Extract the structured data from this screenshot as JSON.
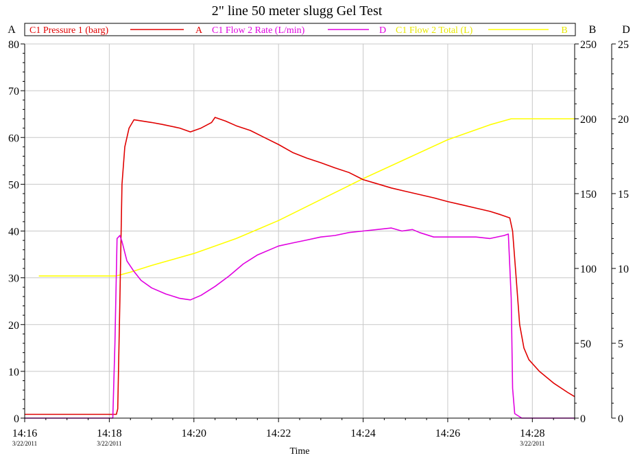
{
  "chart_data": {
    "type": "line",
    "title": "2\" line 50 meter slugg Gel Test",
    "xlabel": "Time",
    "x_range": [
      "14:16",
      "14:29"
    ],
    "x_ticks": [
      {
        "label": "14:16",
        "date": "3/22/2011"
      },
      {
        "label": "14:18",
        "date": "3/22/2011"
      },
      {
        "label": "14:20",
        "date": ""
      },
      {
        "label": "14:22",
        "date": ""
      },
      {
        "label": "14:24",
        "date": ""
      },
      {
        "label": "14:26",
        "date": ""
      },
      {
        "label": "14:28",
        "date": "3/22/2011"
      }
    ],
    "grid": true,
    "axes": [
      {
        "id": "A",
        "label": "A",
        "side": "left",
        "range": [
          0,
          80
        ],
        "ticks": [
          "0",
          "10",
          "20",
          "30",
          "40",
          "50",
          "60",
          "70",
          "80"
        ]
      },
      {
        "id": "B",
        "label": "B",
        "side": "right",
        "range": [
          0,
          250
        ],
        "ticks": [
          "0",
          "50",
          "100",
          "150",
          "200",
          "250"
        ]
      },
      {
        "id": "D",
        "label": "D",
        "side": "right",
        "range": [
          0,
          25
        ],
        "ticks": [
          "0",
          "5",
          "10",
          "15",
          "20",
          "25"
        ]
      }
    ],
    "legend": {
      "placement": "top",
      "entries": [
        {
          "name": "C1 Pressure 1 (barg)",
          "axis": "A"
        },
        {
          "name": "C1 Flow 2 Rate (L/min)",
          "axis": "D"
        },
        {
          "name": "C1 Flow 2 Total (L)",
          "axis": "B"
        }
      ]
    },
    "series": [
      {
        "name": "C1 Pressure 1 (barg)",
        "axis": "A",
        "color": "#e00000",
        "points": [
          [
            "14:16:00",
            0.8
          ],
          [
            "14:18:10",
            0.8
          ],
          [
            "14:18:12",
            2
          ],
          [
            "14:18:15",
            25
          ],
          [
            "14:18:18",
            50
          ],
          [
            "14:18:22",
            58
          ],
          [
            "14:18:28",
            62
          ],
          [
            "14:18:35",
            63.8
          ],
          [
            "14:19:00",
            63.2
          ],
          [
            "14:19:15",
            62.8
          ],
          [
            "14:19:40",
            62.0
          ],
          [
            "14:19:55",
            61.2
          ],
          [
            "14:20:10",
            62.0
          ],
          [
            "14:20:25",
            63.2
          ],
          [
            "14:20:30",
            64.3
          ],
          [
            "14:20:45",
            63.5
          ],
          [
            "14:21:00",
            62.5
          ],
          [
            "14:21:20",
            61.5
          ],
          [
            "14:21:40",
            60
          ],
          [
            "14:22:00",
            58.5
          ],
          [
            "14:22:20",
            56.8
          ],
          [
            "14:22:40",
            55.6
          ],
          [
            "14:23:00",
            54.6
          ],
          [
            "14:23:20",
            53.5
          ],
          [
            "14:23:40",
            52.5
          ],
          [
            "14:24:00",
            51.0
          ],
          [
            "14:24:20",
            50.1
          ],
          [
            "14:24:40",
            49.2
          ],
          [
            "14:25:00",
            48.5
          ],
          [
            "14:25:20",
            47.8
          ],
          [
            "14:25:40",
            47.1
          ],
          [
            "14:26:00",
            46.3
          ],
          [
            "14:26:20",
            45.6
          ],
          [
            "14:26:40",
            44.9
          ],
          [
            "14:27:00",
            44.2
          ],
          [
            "14:27:15",
            43.5
          ],
          [
            "14:27:28",
            42.8
          ],
          [
            "14:27:32",
            40
          ],
          [
            "14:27:37",
            30
          ],
          [
            "14:27:42",
            20
          ],
          [
            "14:27:48",
            15
          ],
          [
            "14:27:55",
            12.5
          ],
          [
            "14:28:10",
            10
          ],
          [
            "14:28:30",
            7.5
          ],
          [
            "14:28:50",
            5.5
          ],
          [
            "14:29:00",
            4.6
          ]
        ]
      },
      {
        "name": "C1 Flow 2 Rate (L/min)",
        "axis": "D",
        "color": "#e000e0",
        "points": [
          [
            "14:16:00",
            0
          ],
          [
            "14:18:05",
            0
          ],
          [
            "14:18:08",
            5
          ],
          [
            "14:18:11",
            12
          ],
          [
            "14:18:15",
            12.2
          ],
          [
            "14:18:18",
            11.8
          ],
          [
            "14:18:25",
            10.5
          ],
          [
            "14:18:35",
            9.8
          ],
          [
            "14:18:45",
            9.2
          ],
          [
            "14:19:00",
            8.7
          ],
          [
            "14:19:20",
            8.3
          ],
          [
            "14:19:40",
            8.0
          ],
          [
            "14:19:55",
            7.9
          ],
          [
            "14:20:10",
            8.2
          ],
          [
            "14:20:30",
            8.8
          ],
          [
            "14:20:50",
            9.5
          ],
          [
            "14:21:10",
            10.3
          ],
          [
            "14:21:30",
            10.9
          ],
          [
            "14:21:50",
            11.3
          ],
          [
            "14:22:00",
            11.5
          ],
          [
            "14:22:20",
            11.7
          ],
          [
            "14:22:40",
            11.9
          ],
          [
            "14:23:00",
            12.1
          ],
          [
            "14:23:20",
            12.2
          ],
          [
            "14:23:40",
            12.4
          ],
          [
            "14:24:00",
            12.5
          ],
          [
            "14:24:20",
            12.6
          ],
          [
            "14:24:40",
            12.7
          ],
          [
            "14:24:55",
            12.5
          ],
          [
            "14:25:10",
            12.6
          ],
          [
            "14:25:20",
            12.4
          ],
          [
            "14:25:40",
            12.1
          ],
          [
            "14:26:00",
            12.1
          ],
          [
            "14:26:20",
            12.1
          ],
          [
            "14:26:40",
            12.1
          ],
          [
            "14:27:00",
            12.0
          ],
          [
            "14:27:20",
            12.2
          ],
          [
            "14:27:26",
            12.3
          ],
          [
            "14:27:30",
            8
          ],
          [
            "14:27:32",
            2
          ],
          [
            "14:27:35",
            0.3
          ],
          [
            "14:27:45",
            0
          ],
          [
            "14:29:00",
            0
          ]
        ]
      },
      {
        "name": "C1 Flow 2 Total (L)",
        "axis": "B",
        "color": "#ffff00",
        "points": [
          [
            "14:16:20",
            95
          ],
          [
            "14:18:10",
            95
          ],
          [
            "14:18:30",
            97.5
          ],
          [
            "14:19:00",
            102
          ],
          [
            "14:20:00",
            110
          ],
          [
            "14:21:00",
            120
          ],
          [
            "14:22:00",
            132
          ],
          [
            "14:23:00",
            146
          ],
          [
            "14:24:00",
            160
          ],
          [
            "14:25:00",
            173
          ],
          [
            "14:26:00",
            186
          ],
          [
            "14:27:00",
            196
          ],
          [
            "14:27:30",
            200
          ],
          [
            "14:29:00",
            200
          ]
        ]
      }
    ]
  }
}
